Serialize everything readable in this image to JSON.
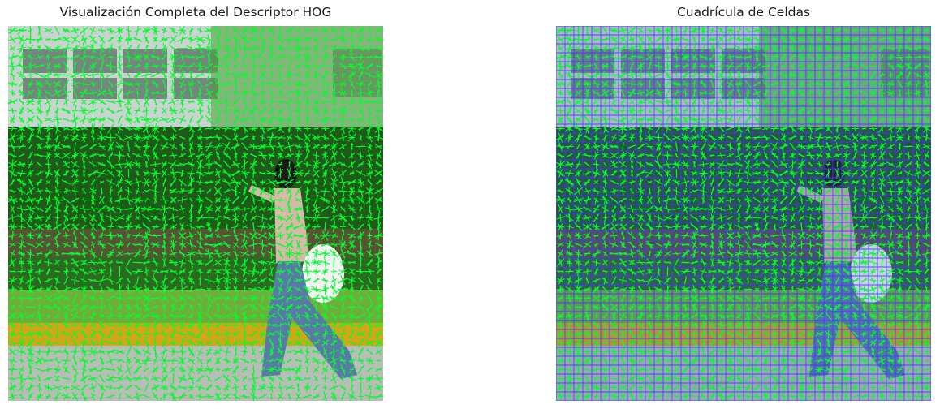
{
  "panels": [
    {
      "title": "Visualización Completa del Descriptor HOG",
      "image": "pedestrian-walking-hog-overlay"
    },
    {
      "title": "Cuadrícula de Celdas",
      "image": "pedestrian-walking-hog-overlay-with-cell-grid"
    }
  ],
  "colors": {
    "hog_lines": "#00ff2a",
    "grid_lines": "#3b3bff",
    "sky_wall": "#c9d3cf",
    "building_dark": "#5b6b66",
    "hedge": "#1f5a1a",
    "hedge_light": "#4f9b3a",
    "grass": "#6fae3b",
    "curb_yellow": "#d6a515",
    "path_gray": "#b9bdb8"
  }
}
